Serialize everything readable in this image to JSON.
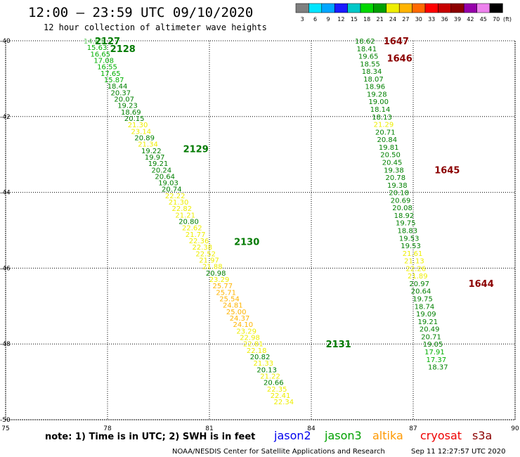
{
  "header": {
    "title": "12:00 – 23:59 UTC 09/10/2020",
    "subtitle": "12 hour collection of altimeter wave heights"
  },
  "legend": {
    "colors": [
      "#7f7f7f",
      "#00e5ff",
      "#00a6ff",
      "#1c1cff",
      "#00c8c8",
      "#00d800",
      "#00a000",
      "#eeee00",
      "#ffb400",
      "#ff6a00",
      "#ff0000",
      "#c80000",
      "#8c0000",
      "#9600aa",
      "#ee82ee",
      "#000000"
    ],
    "labels": [
      "3",
      "6",
      "9",
      "12",
      "15",
      "18",
      "21",
      "24",
      "27",
      "30",
      "33",
      "36",
      "39",
      "42",
      "45",
      "70"
    ],
    "unit": "(ft)"
  },
  "footer": {
    "note": "note:  1) Time is in UTC; 2) SWH is in feet",
    "satellites": [
      {
        "name": "jason2",
        "color": "#0000ee"
      },
      {
        "name": "jason3",
        "color": "#00a000"
      },
      {
        "name": "altika",
        "color": "#ff9900"
      },
      {
        "name": "cryosat",
        "color": "#ee0000"
      },
      {
        "name": "s3a",
        "color": "#8b0000"
      }
    ],
    "credit": "NOAA/NESDIS Center for Satellite Applications and Research",
    "timestamp": "Sep 11 12:27:57 UTC 2020"
  },
  "chart_data": {
    "type": "scatter",
    "xlim": [
      75,
      90
    ],
    "ylim": [
      -40,
      -50
    ],
    "xticks": [
      75,
      78,
      81,
      84,
      87,
      90
    ],
    "yticks": [
      -40,
      -42,
      -44,
      -46,
      -48,
      -50
    ],
    "xtick_labels": [
      "75",
      "78",
      "81",
      "84",
      "87",
      "90"
    ],
    "ytick_labels": [
      "-40",
      "-42",
      "-44",
      "-46",
      "-48",
      "-50"
    ],
    "grid": true,
    "tracks": [
      {
        "satellite": "jason3",
        "points": [
          {
            "lon": 77.59,
            "lat": -40.0,
            "swh": "14.63"
          },
          {
            "lon": 77.69,
            "lat": -40.17,
            "swh": "15.63"
          },
          {
            "lon": 77.79,
            "lat": -40.34,
            "swh": "16.65"
          },
          {
            "lon": 77.89,
            "lat": -40.51,
            "swh": "17.08"
          },
          {
            "lon": 77.99,
            "lat": -40.68,
            "swh": "16.55"
          },
          {
            "lon": 78.09,
            "lat": -40.85,
            "swh": "17.65"
          },
          {
            "lon": 78.19,
            "lat": -41.02,
            "swh": "15.87"
          },
          {
            "lon": 78.29,
            "lat": -41.19,
            "swh": "18.44"
          },
          {
            "lon": 78.39,
            "lat": -41.36,
            "swh": "20.37"
          },
          {
            "lon": 78.49,
            "lat": -41.53,
            "swh": "20.07"
          },
          {
            "lon": 78.59,
            "lat": -41.7,
            "swh": "19.23"
          },
          {
            "lon": 78.69,
            "lat": -41.87,
            "swh": "18.69"
          },
          {
            "lon": 78.79,
            "lat": -42.04,
            "swh": "20.15"
          },
          {
            "lon": 78.89,
            "lat": -42.21,
            "swh": "21.30"
          },
          {
            "lon": 78.99,
            "lat": -42.38,
            "swh": "23.14"
          },
          {
            "lon": 79.09,
            "lat": -42.55,
            "swh": "20.89"
          },
          {
            "lon": 79.19,
            "lat": -42.72,
            "swh": "21.34"
          },
          {
            "lon": 79.29,
            "lat": -42.89,
            "swh": "19.22"
          },
          {
            "lon": 79.39,
            "lat": -43.06,
            "swh": "19.97"
          },
          {
            "lon": 79.49,
            "lat": -43.23,
            "swh": "19.21"
          },
          {
            "lon": 79.59,
            "lat": -43.4,
            "swh": "20.24"
          },
          {
            "lon": 79.69,
            "lat": -43.57,
            "swh": "20.64"
          },
          {
            "lon": 79.79,
            "lat": -43.74,
            "swh": "19.03"
          },
          {
            "lon": 79.89,
            "lat": -43.91,
            "swh": "20.74"
          },
          {
            "lon": 79.99,
            "lat": -44.08,
            "swh": "22.22"
          },
          {
            "lon": 80.09,
            "lat": -44.25,
            "swh": "21.30"
          },
          {
            "lon": 80.19,
            "lat": -44.42,
            "swh": "22.82"
          },
          {
            "lon": 80.29,
            "lat": -44.59,
            "swh": "21.21"
          },
          {
            "lon": 80.39,
            "lat": -44.76,
            "swh": "20.80"
          },
          {
            "lon": 80.49,
            "lat": -44.93,
            "swh": "22.62"
          },
          {
            "lon": 80.59,
            "lat": -45.1,
            "swh": "21.77"
          },
          {
            "lon": 80.69,
            "lat": -45.27,
            "swh": "22.36"
          },
          {
            "lon": 80.79,
            "lat": -45.44,
            "swh": "22.38"
          },
          {
            "lon": 80.89,
            "lat": -45.61,
            "swh": "22.52"
          },
          {
            "lon": 80.99,
            "lat": -45.78,
            "swh": "21.97"
          },
          {
            "lon": 81.09,
            "lat": -45.95,
            "swh": "21.88"
          },
          {
            "lon": 81.19,
            "lat": -46.12,
            "swh": "20.98"
          },
          {
            "lon": 81.29,
            "lat": -46.29,
            "swh": "23.29"
          },
          {
            "lon": 81.39,
            "lat": -46.46,
            "swh": "25.77"
          },
          {
            "lon": 81.49,
            "lat": -46.63,
            "swh": "25.71"
          },
          {
            "lon": 81.59,
            "lat": -46.8,
            "swh": "25.54"
          },
          {
            "lon": 81.69,
            "lat": -46.97,
            "swh": "24.81"
          },
          {
            "lon": 81.79,
            "lat": -47.14,
            "swh": "25.00"
          },
          {
            "lon": 81.89,
            "lat": -47.31,
            "swh": "24.37"
          },
          {
            "lon": 81.99,
            "lat": -47.48,
            "swh": "24.10"
          },
          {
            "lon": 82.09,
            "lat": -47.65,
            "swh": "23.29"
          },
          {
            "lon": 82.19,
            "lat": -47.82,
            "swh": "22.98"
          },
          {
            "lon": 82.29,
            "lat": -47.99,
            "swh": "22.81"
          },
          {
            "lon": 82.39,
            "lat": -48.16,
            "swh": "22.18"
          },
          {
            "lon": 82.49,
            "lat": -48.33,
            "swh": "20.82"
          },
          {
            "lon": 82.59,
            "lat": -48.5,
            "swh": "21.33"
          },
          {
            "lon": 82.69,
            "lat": -48.67,
            "swh": "20.13"
          },
          {
            "lon": 82.79,
            "lat": -48.84,
            "swh": "21.22"
          },
          {
            "lon": 82.89,
            "lat": -49.01,
            "swh": "20.66"
          },
          {
            "lon": 82.99,
            "lat": -49.18,
            "swh": "22.35"
          },
          {
            "lon": 83.09,
            "lat": -49.35,
            "swh": "22.41"
          },
          {
            "lon": 83.19,
            "lat": -49.52,
            "swh": "22.34"
          }
        ],
        "pass_labels": [
          {
            "label": "2127",
            "lon": 78.0,
            "lat": -40.0
          },
          {
            "label": "2128",
            "lon": 78.45,
            "lat": -40.2
          },
          {
            "label": "2129",
            "lon": 80.6,
            "lat": -42.85
          },
          {
            "label": "2130",
            "lon": 82.1,
            "lat": -45.3
          },
          {
            "label": "2131",
            "lon": 84.8,
            "lat": -48.0
          }
        ]
      },
      {
        "satellite": "cryosat",
        "points": [
          {
            "lon": 85.58,
            "lat": -40.0,
            "swh": "18.62"
          },
          {
            "lon": 85.63,
            "lat": -40.2,
            "swh": "18.41"
          },
          {
            "lon": 85.68,
            "lat": -40.4,
            "swh": "19.65"
          },
          {
            "lon": 85.73,
            "lat": -40.6,
            "swh": "18.55"
          },
          {
            "lon": 85.78,
            "lat": -40.8,
            "swh": "18.34"
          },
          {
            "lon": 85.83,
            "lat": -41.0,
            "swh": "18.07"
          },
          {
            "lon": 85.88,
            "lat": -41.2,
            "swh": "18.96"
          },
          {
            "lon": 85.93,
            "lat": -41.4,
            "swh": "19.28"
          },
          {
            "lon": 85.98,
            "lat": -41.6,
            "swh": "19.00"
          },
          {
            "lon": 86.03,
            "lat": -41.8,
            "swh": "18.14"
          },
          {
            "lon": 86.08,
            "lat": -42.0,
            "swh": "18.13"
          },
          {
            "lon": 86.13,
            "lat": -42.2,
            "swh": "21.29"
          },
          {
            "lon": 86.18,
            "lat": -42.4,
            "swh": "20.71"
          },
          {
            "lon": 86.23,
            "lat": -42.6,
            "swh": "20.84"
          },
          {
            "lon": 86.28,
            "lat": -42.8,
            "swh": "19.81"
          },
          {
            "lon": 86.33,
            "lat": -43.0,
            "swh": "20.50"
          },
          {
            "lon": 86.38,
            "lat": -43.2,
            "swh": "20.45"
          },
          {
            "lon": 86.43,
            "lat": -43.4,
            "swh": "19.38"
          },
          {
            "lon": 86.48,
            "lat": -43.6,
            "swh": "20.78"
          },
          {
            "lon": 86.53,
            "lat": -43.8,
            "swh": "19.38"
          },
          {
            "lon": 86.58,
            "lat": -44.0,
            "swh": "20.18"
          },
          {
            "lon": 86.63,
            "lat": -44.2,
            "swh": "20.69"
          },
          {
            "lon": 86.68,
            "lat": -44.4,
            "swh": "20.08"
          },
          {
            "lon": 86.73,
            "lat": -44.6,
            "swh": "18.92"
          },
          {
            "lon": 86.78,
            "lat": -44.8,
            "swh": "19.75"
          },
          {
            "lon": 86.83,
            "lat": -45.0,
            "swh": "18.83"
          },
          {
            "lon": 86.88,
            "lat": -45.2,
            "swh": "19.53"
          },
          {
            "lon": 86.93,
            "lat": -45.4,
            "swh": "19.53"
          },
          {
            "lon": 86.98,
            "lat": -45.6,
            "swh": "21.61"
          },
          {
            "lon": 87.03,
            "lat": -45.8,
            "swh": "21.13"
          },
          {
            "lon": 87.08,
            "lat": -46.0,
            "swh": "22.26"
          },
          {
            "lon": 87.13,
            "lat": -46.2,
            "swh": "21.89"
          },
          {
            "lon": 87.18,
            "lat": -46.4,
            "swh": "20.97"
          },
          {
            "lon": 87.23,
            "lat": -46.6,
            "swh": "20.64"
          },
          {
            "lon": 87.28,
            "lat": -46.8,
            "swh": "19.75"
          },
          {
            "lon": 87.33,
            "lat": -47.0,
            "swh": "18.74"
          },
          {
            "lon": 87.38,
            "lat": -47.2,
            "swh": "19.09"
          },
          {
            "lon": 87.43,
            "lat": -47.4,
            "swh": "19.21"
          },
          {
            "lon": 87.48,
            "lat": -47.6,
            "swh": "20.49"
          },
          {
            "lon": 87.53,
            "lat": -47.8,
            "swh": "20.71"
          },
          {
            "lon": 87.58,
            "lat": -48.0,
            "swh": "19.05"
          },
          {
            "lon": 87.63,
            "lat": -48.2,
            "swh": "17.91"
          },
          {
            "lon": 87.68,
            "lat": -48.4,
            "swh": "17.37"
          },
          {
            "lon": 87.73,
            "lat": -48.6,
            "swh": "18.37"
          }
        ],
        "pass_labels": [
          {
            "label": "1647",
            "lon": 86.5,
            "lat": -40.0
          },
          {
            "label": "1646",
            "lon": 86.6,
            "lat": -40.45
          },
          {
            "label": "1645",
            "lon": 88.0,
            "lat": -43.4
          },
          {
            "label": "1644",
            "lon": 89.0,
            "lat": -46.4
          }
        ]
      }
    ]
  }
}
